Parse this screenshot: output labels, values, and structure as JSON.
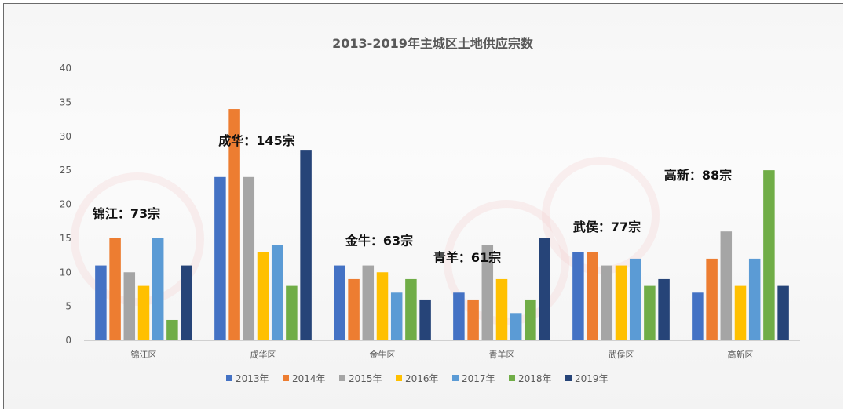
{
  "chart_data": {
    "type": "bar",
    "title": "2013-2019年主城区土地供应宗数",
    "xlabel": "",
    "ylabel": "",
    "ylim": [
      0,
      40
    ],
    "yticks": [
      0,
      5,
      10,
      15,
      20,
      25,
      30,
      35,
      40
    ],
    "grid": false,
    "legend_position": "bottom",
    "categories": [
      "锦江区",
      "成华区",
      "金牛区",
      "青羊区",
      "武侯区",
      "高新区"
    ],
    "series": [
      {
        "name": "2013年",
        "color": "#4472C4",
        "values": [
          11,
          24,
          11,
          7,
          13,
          7
        ]
      },
      {
        "name": "2014年",
        "color": "#ED7D31",
        "values": [
          15,
          34,
          9,
          6,
          13,
          12
        ]
      },
      {
        "name": "2015年",
        "color": "#A5A5A5",
        "values": [
          10,
          24,
          11,
          14,
          11,
          16
        ]
      },
      {
        "name": "2016年",
        "color": "#FFC000",
        "values": [
          8,
          13,
          10,
          9,
          11,
          8
        ]
      },
      {
        "name": "2017年",
        "color": "#5B9BD5",
        "values": [
          15,
          14,
          7,
          4,
          12,
          12
        ]
      },
      {
        "name": "2018年",
        "color": "#70AD47",
        "values": [
          3,
          8,
          9,
          6,
          8,
          25
        ]
      },
      {
        "name": "2019年",
        "color": "#264478",
        "values": [
          11,
          28,
          6,
          15,
          9,
          8
        ]
      }
    ],
    "annotations": [
      {
        "text": "锦江：73宗",
        "category": 0
      },
      {
        "text": "成华：145宗",
        "category": 1
      },
      {
        "text": "金牛：63宗",
        "category": 2
      },
      {
        "text": "青羊：61宗",
        "category": 3
      },
      {
        "text": "武侯：77宗",
        "category": 4
      },
      {
        "text": "高新：88宗",
        "category": 5
      }
    ]
  }
}
